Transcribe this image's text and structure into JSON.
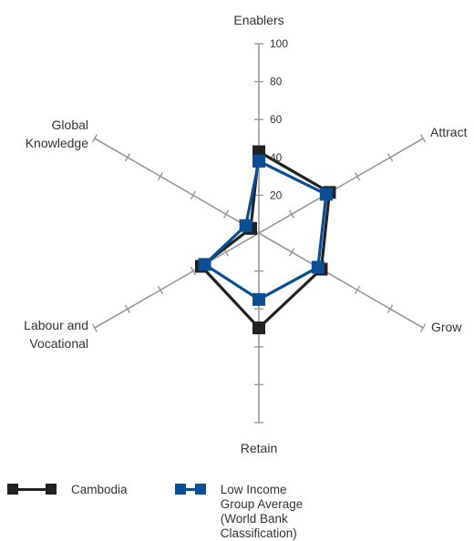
{
  "chart_data": {
    "type": "radar",
    "axes": [
      "Enablers",
      "Attract",
      "Grow",
      "Retain",
      "Labour and Vocational",
      "Global Knowledge"
    ],
    "axis_label_lines": [
      [
        "Enablers"
      ],
      [
        "Attract"
      ],
      [
        "Grow"
      ],
      [
        "Retain"
      ],
      [
        "Labour and",
        "Vocational"
      ],
      [
        "Global",
        "Knowledge"
      ]
    ],
    "rlim": [
      0,
      100
    ],
    "ticks": [
      20,
      40,
      60,
      80,
      100
    ],
    "tick_labels": [
      "20",
      "40",
      "60",
      "80",
      "100"
    ],
    "series": [
      {
        "name": "Cambodia",
        "color": "#222222",
        "values": [
          43,
          43,
          38,
          50,
          35,
          5
        ]
      },
      {
        "name": "Low Income Group Average (World Bank Classification)",
        "color": "#0a4f96",
        "values": [
          38,
          41,
          36,
          35,
          33,
          8
        ]
      }
    ],
    "legend_position": "bottom",
    "grid_color": "#999999"
  },
  "legend": {
    "items": [
      {
        "label_lines": [
          "Cambodia"
        ]
      },
      {
        "label_lines": [
          "Low Income Group Average",
          "(World Bank Classification)"
        ]
      }
    ]
  }
}
